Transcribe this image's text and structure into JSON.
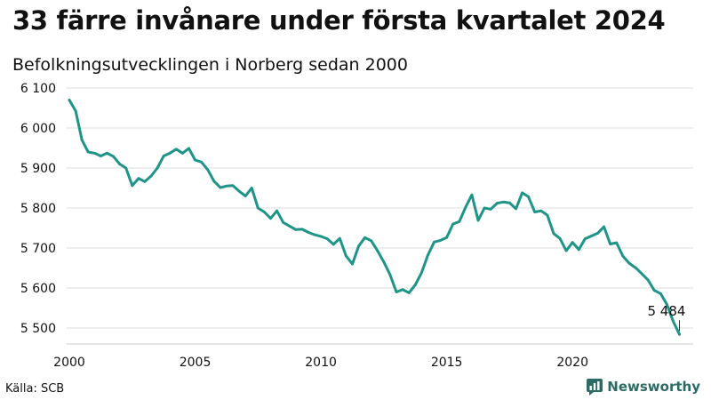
{
  "title": "33 färre invånare under första kvartalet 2024",
  "subtitle": "Befolkningsutvecklingen i Norberg sedan 2000",
  "source": "Källa: SCB",
  "brand": {
    "name": "Newsworthy",
    "icon": "newsworthy-logo-icon",
    "color": "#2c6b64"
  },
  "colors": {
    "line": "#1f9488",
    "grid": "#dddddd"
  },
  "chart_data": {
    "type": "line",
    "title": "33 färre invånare under första kvartalet 2024",
    "subtitle": "Befolkningsutvecklingen i Norberg sedan 2000",
    "xlabel": "",
    "ylabel": "",
    "xlim": [
      2000,
      2024.25
    ],
    "ylim": [
      5460,
      6100
    ],
    "grid": true,
    "yticks": [
      5500,
      5600,
      5700,
      5800,
      5900,
      6000,
      6100
    ],
    "ytick_labels": [
      "5 500",
      "5 600",
      "5 700",
      "5 800",
      "5 900",
      "6 000",
      "6 100"
    ],
    "xticks": [
      2000,
      2005,
      2010,
      2015,
      2020
    ],
    "xtick_labels": [
      "2000",
      "2005",
      "2010",
      "2015",
      "2020"
    ],
    "annotation": {
      "text": "5 484",
      "x": 2024.25,
      "y": 5484
    },
    "series": [
      {
        "x": [
          2000.0,
          2000.25,
          2000.5,
          2000.75,
          2001.0,
          2001.25,
          2001.5,
          2001.75,
          2002.0,
          2002.25,
          2002.5,
          2002.75,
          2003.0,
          2003.25,
          2003.5,
          2003.75,
          2004.0,
          2004.25,
          2004.5,
          2004.75,
          2005.0,
          2005.25,
          2005.5,
          2005.75,
          2006.0,
          2006.25,
          2006.5,
          2006.75,
          2007.0,
          2007.25,
          2007.5,
          2007.75,
          2008.0,
          2008.25,
          2008.5,
          2008.75,
          2009.0,
          2009.25,
          2009.5,
          2009.75,
          2010.0,
          2010.25,
          2010.5,
          2010.75,
          2011.0,
          2011.25,
          2011.5,
          2011.75,
          2012.0,
          2012.25,
          2012.5,
          2012.75,
          2013.0,
          2013.25,
          2013.5,
          2013.75,
          2014.0,
          2014.25,
          2014.5,
          2014.75,
          2015.0,
          2015.25,
          2015.5,
          2015.75,
          2016.0,
          2016.25,
          2016.5,
          2016.75,
          2017.0,
          2017.25,
          2017.5,
          2017.75,
          2018.0,
          2018.25,
          2018.5,
          2018.75,
          2019.0,
          2019.25,
          2019.5,
          2019.75,
          2020.0,
          2020.25,
          2020.5,
          2020.75,
          2021.0,
          2021.25,
          2021.5,
          2021.75,
          2022.0,
          2022.25,
          2022.5,
          2022.75,
          2023.0,
          2023.25,
          2023.5,
          2023.75,
          2024.0,
          2024.25
        ],
        "values": [
          6070,
          6043,
          5970,
          5940,
          5937,
          5930,
          5937,
          5929,
          5910,
          5900,
          5856,
          5874,
          5866,
          5880,
          5900,
          5930,
          5937,
          5947,
          5937,
          5949,
          5920,
          5915,
          5896,
          5867,
          5851,
          5855,
          5856,
          5842,
          5830,
          5850,
          5800,
          5790,
          5774,
          5793,
          5764,
          5755,
          5746,
          5747,
          5739,
          5733,
          5729,
          5723,
          5709,
          5724,
          5680,
          5660,
          5705,
          5726,
          5718,
          5693,
          5665,
          5633,
          5590,
          5596,
          5588,
          5608,
          5638,
          5682,
          5715,
          5719,
          5726,
          5760,
          5766,
          5802,
          5833,
          5769,
          5800,
          5797,
          5812,
          5815,
          5813,
          5798,
          5838,
          5828,
          5790,
          5793,
          5782,
          5736,
          5724,
          5693,
          5714,
          5696,
          5723,
          5730,
          5737,
          5753,
          5710,
          5713,
          5680,
          5662,
          5651,
          5636,
          5620,
          5594,
          5586,
          5559,
          5517,
          5484
        ]
      }
    ]
  }
}
